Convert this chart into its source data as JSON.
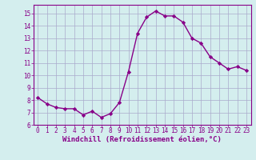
{
  "x_values": [
    0,
    1,
    2,
    3,
    4,
    5,
    6,
    7,
    8,
    9,
    10,
    11,
    12,
    13,
    14,
    15,
    16,
    17,
    18,
    19,
    20,
    21,
    22,
    23
  ],
  "y_values": [
    8.2,
    7.7,
    7.4,
    7.3,
    7.3,
    6.8,
    7.1,
    6.6,
    6.9,
    7.8,
    10.3,
    13.4,
    14.7,
    15.2,
    14.8,
    14.8,
    14.3,
    13.0,
    12.6,
    11.5,
    11.0,
    10.5,
    10.7,
    10.4
  ],
  "line_color": "#880088",
  "marker": "D",
  "marker_size": 2.2,
  "linewidth": 1.0,
  "xlim": [
    -0.5,
    23.5
  ],
  "ylim": [
    6,
    15.7
  ],
  "yticks": [
    6,
    7,
    8,
    9,
    10,
    11,
    12,
    13,
    14,
    15
  ],
  "xticks": [
    0,
    1,
    2,
    3,
    4,
    5,
    6,
    7,
    8,
    9,
    10,
    11,
    12,
    13,
    14,
    15,
    16,
    17,
    18,
    19,
    20,
    21,
    22,
    23
  ],
  "xlabel": "Windchill (Refroidissement éolien,°C)",
  "background_color": "#d4eeee",
  "grid_color": "#aaaacc",
  "tick_label_color": "#880088",
  "tick_fontsize": 5.5,
  "xlabel_fontsize": 6.5,
  "xlabel_color": "#880088"
}
